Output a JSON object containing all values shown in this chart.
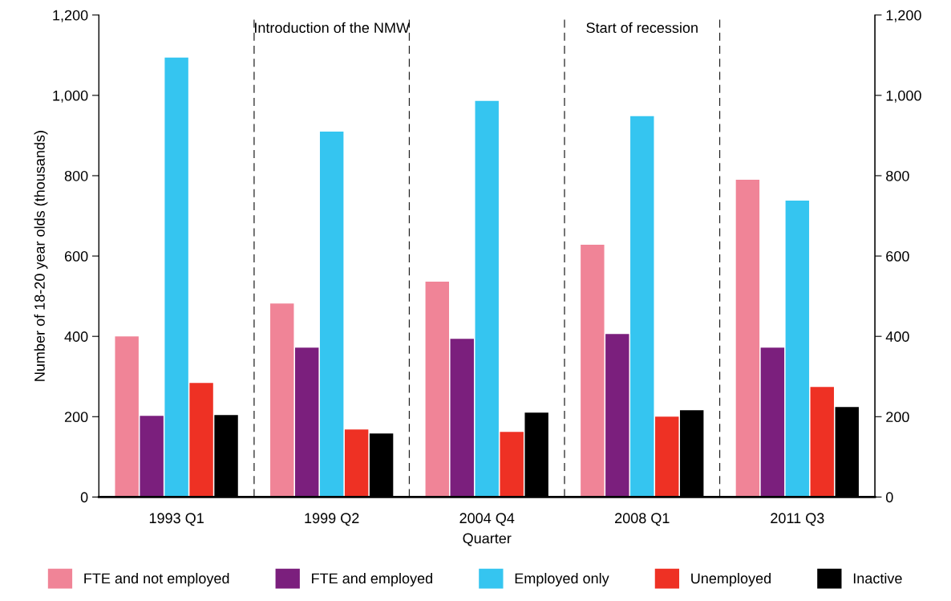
{
  "chart_data": {
    "type": "bar",
    "xlabel": "Quarter",
    "ylabel": "Number of 18-20 year olds (thousands)",
    "categories": [
      "1993 Q1",
      "1999 Q2",
      "2004 Q4",
      "2008 Q1",
      "2011 Q3"
    ],
    "series": [
      {
        "name": "FTE and not employed",
        "color": "#f08497",
        "values": [
          400,
          482,
          536,
          628,
          790
        ]
      },
      {
        "name": "FTE and employed",
        "color": "#7b1f7d",
        "values": [
          202,
          372,
          394,
          406,
          372
        ]
      },
      {
        "name": "Employed only",
        "color": "#35c5f0",
        "values": [
          1094,
          910,
          986,
          948,
          738
        ]
      },
      {
        "name": "Unemployed",
        "color": "#ee3124",
        "values": [
          284,
          168,
          162,
          200,
          274
        ]
      },
      {
        "name": "Inactive",
        "color": "#000000",
        "values": [
          204,
          158,
          210,
          216,
          224
        ]
      }
    ],
    "ylim": [
      0,
      1200
    ],
    "yticks": [
      0,
      200,
      400,
      600,
      800,
      {
        "value": 1000,
        "label": "1,000"
      },
      {
        "value": 1200,
        "label": "1,200"
      }
    ],
    "y2lim": [
      0,
      1200
    ],
    "y2ticks": [
      0,
      200,
      400,
      600,
      800,
      {
        "value": 1000,
        "label": "1,000"
      },
      {
        "value": 1200,
        "label": "1,200"
      }
    ],
    "annotations": [
      "Introduction of the NMW",
      "Start of recession"
    ],
    "grid": false,
    "legend": "bottom"
  }
}
